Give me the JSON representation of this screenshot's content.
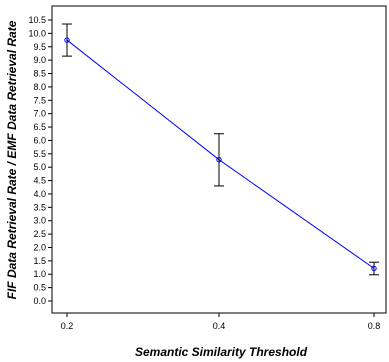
{
  "chart_data": {
    "type": "line",
    "title": "",
    "xlabel": "Semantic Similarity Threshold",
    "ylabel": "FIF Data Retrieval Rate / EMF Data Retrieval Rate",
    "x_ticks": [
      "0.2",
      "0.4",
      "0.8"
    ],
    "y_ticks": [
      "0.0",
      "0.5",
      "1.0",
      "1.5",
      "2.0",
      "2.5",
      "3.0",
      "3.5",
      "4.0",
      "4.5",
      "5.0",
      "5.5",
      "6.0",
      "6.5",
      "7.0",
      "7.5",
      "8.0",
      "8.5",
      "9.0",
      "9.5",
      "10.0",
      "10.5"
    ],
    "ylim": [
      0,
      10.5
    ],
    "grid": false,
    "legend": "none",
    "line_color": "#0000ff",
    "series": [
      {
        "x": [
          "0.2",
          "0.4",
          "0.8"
        ],
        "values": [
          9.75,
          5.28,
          1.22
        ],
        "err_low": [
          9.15,
          4.3,
          0.98
        ],
        "err_high": [
          10.35,
          6.25,
          1.45
        ]
      }
    ]
  }
}
